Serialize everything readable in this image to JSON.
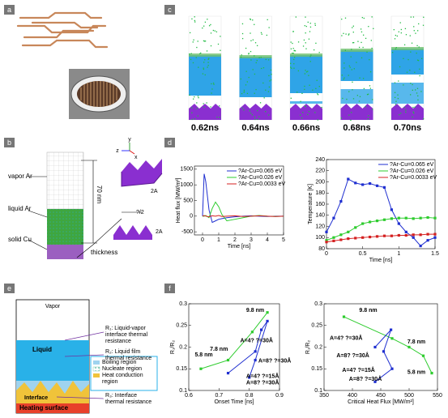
{
  "panel_labels": [
    "a",
    "b",
    "c",
    "d",
    "e",
    "f"
  ],
  "panel_b": {
    "vapor": "vapor Ar",
    "liquid": "liquid Ar",
    "solid": "solid Cu",
    "height": "70 nm",
    "thickness": "thickness",
    "amp_top": "2A",
    "half_wave": "?/2",
    "amp_bottom": "2A",
    "axis_x": "x",
    "axis_y": "y",
    "axis_z": "z"
  },
  "panel_c": {
    "time_labels": [
      "0.62ns",
      "0.64ns",
      "0.66ns",
      "0.68ns",
      "0.70ns"
    ]
  },
  "panel_e": {
    "vapor": "Vapor",
    "liquid": "Liquid",
    "interface": "Interface",
    "heating": "Heating surface",
    "r1": [
      "R₁: Liquid-vapor",
      "interface thermal",
      "resistance"
    ],
    "r2": [
      "R₂: Liquid film",
      "thermal resistance"
    ],
    "r3": [
      "R₃: Interface",
      "thermal resistance"
    ],
    "legend": [
      "Boiling region",
      "Nucleate region",
      "Heat conduction",
      "region"
    ]
  },
  "chart_data": [
    {
      "type": "line",
      "xlabel": "Time [ns]",
      "ylabel": "Heat flux [MW/m²]",
      "x": [
        0,
        0.1,
        0.2,
        0.4,
        0.6,
        0.8,
        1,
        1.2,
        1.5,
        2,
        2.5,
        3,
        3.5,
        4,
        4.5,
        5
      ],
      "xlim": [
        -0.5,
        5
      ],
      "xticks": [
        0,
        1,
        2,
        3,
        4,
        5
      ],
      "ylim": [
        -600,
        1600
      ],
      "yticks": [
        -500,
        0,
        500,
        1000,
        1500
      ],
      "legend": "upper-right",
      "markers": "none",
      "series": [
        {
          "name": "?Ar-Cu=0.065 eV",
          "color": "#1f2fd0",
          "values": [
            0,
            1350,
            1100,
            200,
            -200,
            -150,
            -100,
            -80,
            -50,
            -20,
            0,
            10,
            0,
            -10,
            0,
            0
          ]
        },
        {
          "name": "?Ar-Cu=0.026 eV",
          "color": "#2ecc2e",
          "values": [
            0,
            0,
            20,
            -50,
            250,
            450,
            300,
            50,
            -150,
            -100,
            -50,
            0,
            20,
            0,
            -10,
            0
          ]
        },
        {
          "name": "?Ar-Cu=0.0033 eV",
          "color": "#d42020",
          "values": [
            0,
            20,
            0,
            -20,
            10,
            0,
            20,
            -10,
            0,
            10,
            -10,
            0,
            10,
            0,
            -10,
            0
          ]
        }
      ]
    },
    {
      "type": "line",
      "xlabel": "Time [ns]",
      "ylabel": "Temperature [K]",
      "x": [
        0,
        0.1,
        0.2,
        0.3,
        0.4,
        0.5,
        0.6,
        0.7,
        0.8,
        0.9,
        1,
        1.1,
        1.2,
        1.3,
        1.4,
        1.5
      ],
      "xlim": [
        0,
        1.5
      ],
      "xticks": [
        0,
        0.5,
        1,
        1.5
      ],
      "ylim": [
        80,
        240
      ],
      "yticks": [
        80,
        100,
        120,
        140,
        160,
        180,
        200,
        220,
        240
      ],
      "legend": "upper-right",
      "markers": "square",
      "series": [
        {
          "name": "?Ar-Cu=0.065 eV",
          "color": "#1f2fd0",
          "values": [
            110,
            135,
            165,
            205,
            198,
            195,
            197,
            193,
            190,
            150,
            125,
            110,
            100,
            85,
            95,
            100
          ]
        },
        {
          "name": "?Ar-Cu=0.026 eV",
          "color": "#2ecc2e",
          "values": [
            95,
            100,
            105,
            110,
            118,
            125,
            128,
            130,
            132,
            134,
            135,
            135,
            134,
            135,
            136,
            135
          ]
        },
        {
          "name": "?Ar-Cu=0.0033 eV",
          "color": "#d42020",
          "values": [
            92,
            94,
            96,
            98,
            99,
            100,
            101,
            102,
            103,
            103,
            104,
            104,
            105,
            105,
            106,
            106
          ]
        }
      ]
    },
    {
      "type": "line",
      "xlabel": "Onset Time [ns]",
      "ylabel": "R₁/R₂",
      "xlim": [
        0.6,
        0.9
      ],
      "xticks": [
        0.6,
        0.7,
        0.8,
        0.9
      ],
      "ylim": [
        0.1,
        0.3
      ],
      "yticks": [
        0.1,
        0.15,
        0.2,
        0.25,
        0.3
      ],
      "markers": "square",
      "annotations": [
        "9.8 nm",
        "7.8 nm",
        "5.8 nm",
        "A=4? ?=30Å",
        "A=8? ?=30Å",
        "A=4? ?=15Å",
        "A=8? ?=30Å"
      ],
      "series": [
        {
          "color": "#2ecc2e",
          "x": [
            0.64,
            0.73,
            0.81,
            0.86
          ],
          "values": [
            0.15,
            0.17,
            0.235,
            0.28
          ]
        },
        {
          "color": "#1f2fd0",
          "x": [
            0.73,
            0.82,
            0.84,
            0.86,
            0.82,
            0.8
          ],
          "values": [
            0.14,
            0.19,
            0.24,
            0.26,
            0.17,
            0.13
          ]
        }
      ]
    },
    {
      "type": "line",
      "xlabel": "Critical Heat Flux [MW/m²]",
      "ylabel": "R₁/R₂",
      "xlim": [
        350,
        550
      ],
      "xticks": [
        350,
        400,
        450,
        500,
        550
      ],
      "ylim": [
        0.1,
        0.3
      ],
      "yticks": [
        0.1,
        0.15,
        0.2,
        0.25,
        0.3
      ],
      "markers": "square",
      "annotations": [
        "9.8 nm",
        "7.8 nm",
        "5.8 nm",
        "A=4? ?=30Å",
        "A=8? ?=30Å",
        "A=4? ?=15Å",
        "A=8? ?=30Å"
      ],
      "series": [
        {
          "color": "#2ecc2e",
          "x": [
            540,
            525,
            500,
            470,
            385
          ],
          "values": [
            0.14,
            0.18,
            0.2,
            0.22,
            0.27
          ]
        },
        {
          "color": "#1f2fd0",
          "x": [
            440,
            468,
            455,
            470,
            440
          ],
          "values": [
            0.2,
            0.24,
            0.19,
            0.15,
            0.12
          ]
        }
      ]
    }
  ]
}
